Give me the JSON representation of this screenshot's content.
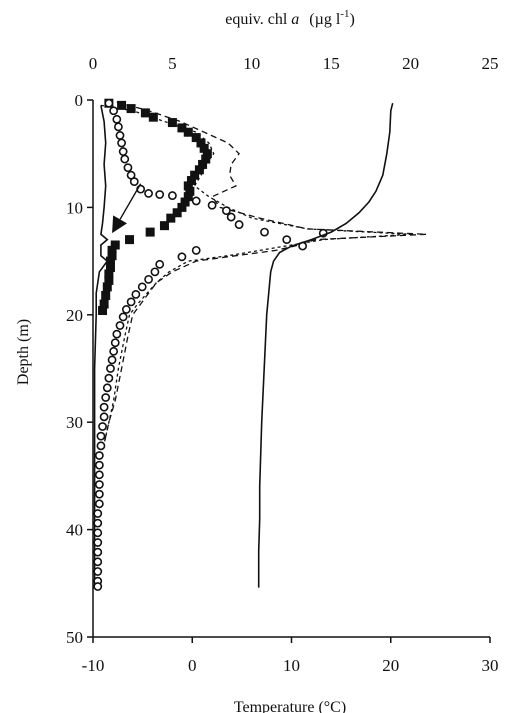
{
  "chart_data": {
    "type": "scatter",
    "title": "",
    "top_axis": {
      "label_prefix": "equiv. chl",
      "label_italic": "a",
      "label_units": "(µg l",
      "label_sup": "-1",
      "label_close": ")",
      "range": [
        0,
        25
      ],
      "ticks": [
        0,
        5,
        10,
        15,
        20,
        25
      ],
      "tick_labels": [
        "0",
        "5",
        "10",
        "15",
        "20",
        "25"
      ]
    },
    "bottom_axis": {
      "label": "Temperature (°C)",
      "range": [
        -10,
        30
      ],
      "ticks": [
        -10,
        0,
        10,
        20,
        30
      ],
      "tick_labels": [
        "-10",
        "0",
        "10",
        "20",
        "30"
      ]
    },
    "left_axis": {
      "label": "Depth (m)",
      "range": [
        0,
        50
      ],
      "inverted": true,
      "ticks": [
        0,
        10,
        20,
        30,
        40,
        50
      ],
      "tick_labels": [
        "0",
        "10",
        "20",
        "30",
        "40",
        "50"
      ]
    },
    "grid": false,
    "legend": "none",
    "series": [
      {
        "axis": "top",
        "style": "solid-line",
        "points": [
          [
            0.5,
            0.5
          ],
          [
            0.7,
            2
          ],
          [
            0.8,
            4
          ],
          [
            0.7,
            6
          ],
          [
            0.8,
            8
          ],
          [
            0.7,
            10
          ],
          [
            0.6,
            11.5
          ],
          [
            0.5,
            12.5
          ],
          [
            0.9,
            13
          ],
          [
            0.5,
            13.5
          ],
          [
            0.5,
            14.5
          ],
          [
            0.9,
            15
          ],
          [
            0.4,
            16
          ],
          [
            0.2,
            18
          ],
          [
            0.2,
            20
          ],
          [
            0.1,
            25
          ],
          [
            0.1,
            30
          ],
          [
            0.1,
            35
          ],
          [
            0.1,
            40
          ],
          [
            0.1,
            45.5
          ]
        ]
      },
      {
        "axis": "top",
        "style": "dashed-line",
        "points": [
          [
            1.5,
            0.2
          ],
          [
            3.5,
            1
          ],
          [
            5.5,
            2
          ],
          [
            7,
            3
          ],
          [
            8.5,
            4
          ],
          [
            9.2,
            5
          ],
          [
            8.7,
            6
          ],
          [
            8.6,
            7
          ],
          [
            9.0,
            8
          ],
          [
            7.5,
            9
          ],
          [
            8.0,
            10
          ],
          [
            10.5,
            11
          ],
          [
            13.5,
            12
          ],
          [
            21.0,
            12.5
          ],
          [
            14.0,
            13
          ],
          [
            13.0,
            13.5
          ],
          [
            11.5,
            14
          ],
          [
            9.0,
            14.5
          ],
          [
            6.5,
            15
          ],
          [
            5.0,
            16
          ],
          [
            4.0,
            17
          ],
          [
            3.5,
            18
          ],
          [
            3.0,
            19
          ],
          [
            2.5,
            20
          ],
          [
            2.2,
            22
          ],
          [
            1.8,
            25
          ],
          [
            1.4,
            28
          ],
          [
            1.0,
            30
          ],
          [
            0.7,
            32
          ]
        ]
      },
      {
        "axis": "top",
        "style": "dotted-line",
        "points": [
          [
            0.5,
            0.5
          ],
          [
            2.5,
            1
          ],
          [
            4.5,
            2
          ],
          [
            6.5,
            3
          ],
          [
            7.3,
            4
          ],
          [
            7.6,
            5
          ],
          [
            7.1,
            6
          ],
          [
            6.8,
            7
          ],
          [
            6.4,
            8
          ],
          [
            7.3,
            9
          ],
          [
            8.5,
            10
          ],
          [
            10.0,
            11
          ],
          [
            13.5,
            12
          ],
          [
            20.0,
            12.5
          ],
          [
            14.5,
            13
          ],
          [
            12.5,
            13.5
          ],
          [
            10.5,
            14
          ],
          [
            8.5,
            14.5
          ],
          [
            6.0,
            15
          ],
          [
            4.8,
            16
          ],
          [
            4.0,
            17
          ],
          [
            3.4,
            18
          ],
          [
            2.8,
            19
          ],
          [
            2.3,
            20
          ],
          [
            2.0,
            22
          ],
          [
            1.6,
            25
          ],
          [
            1.3,
            28
          ],
          [
            1.0,
            30
          ],
          [
            0.7,
            32
          ]
        ]
      },
      {
        "axis": "top",
        "style": "filled-square-markers",
        "points": [
          [
            1.0,
            0.3
          ],
          [
            1.8,
            0.5
          ],
          [
            2.4,
            0.8
          ],
          [
            3.3,
            1.2
          ],
          [
            3.8,
            1.6
          ],
          [
            5.0,
            2.1
          ],
          [
            5.6,
            2.6
          ],
          [
            6.0,
            3.0
          ],
          [
            6.5,
            3.5
          ],
          [
            6.8,
            4.0
          ],
          [
            7.0,
            4.5
          ],
          [
            7.2,
            5.0
          ],
          [
            7.1,
            5.5
          ],
          [
            6.9,
            6.0
          ],
          [
            6.7,
            6.5
          ],
          [
            6.4,
            7.0
          ],
          [
            6.2,
            7.5
          ],
          [
            6.0,
            8.0
          ],
          [
            6.1,
            8.5
          ],
          [
            6.0,
            9.0
          ],
          [
            5.8,
            9.5
          ],
          [
            5.6,
            10.0
          ],
          [
            5.3,
            10.5
          ],
          [
            4.9,
            11.0
          ],
          [
            4.5,
            11.7
          ],
          [
            3.6,
            12.3
          ],
          [
            2.3,
            13.0
          ],
          [
            1.4,
            13.5
          ],
          [
            1.2,
            14.0
          ],
          [
            1.2,
            14.5
          ],
          [
            1.1,
            15.0
          ],
          [
            1.1,
            15.6
          ],
          [
            1.0,
            16.2
          ],
          [
            1.0,
            16.8
          ],
          [
            0.9,
            17.4
          ],
          [
            0.8,
            18.2
          ],
          [
            0.7,
            19.0
          ],
          [
            0.6,
            19.6
          ]
        ]
      },
      {
        "axis": "top",
        "style": "open-circle-markers",
        "points": [
          [
            1.0,
            0.3
          ],
          [
            1.3,
            1.0
          ],
          [
            1.5,
            1.8
          ],
          [
            1.6,
            2.5
          ],
          [
            1.7,
            3.3
          ],
          [
            1.8,
            4.0
          ],
          [
            1.9,
            4.8
          ],
          [
            2.0,
            5.5
          ],
          [
            2.2,
            6.3
          ],
          [
            2.4,
            7.0
          ],
          [
            2.6,
            7.6
          ],
          [
            3.0,
            8.3
          ],
          [
            3.5,
            8.7
          ],
          [
            4.2,
            8.8
          ],
          [
            5.0,
            8.9
          ],
          [
            6.5,
            9.4
          ],
          [
            7.5,
            9.8
          ],
          [
            8.4,
            10.3
          ],
          [
            8.7,
            10.9
          ],
          [
            9.2,
            11.6
          ],
          [
            10.8,
            12.3
          ],
          [
            12.2,
            13.0
          ],
          [
            13.2,
            13.6
          ],
          [
            14.5,
            12.4
          ],
          [
            6.5,
            14.0
          ],
          [
            5.6,
            14.6
          ],
          [
            4.2,
            15.3
          ],
          [
            3.9,
            16.0
          ],
          [
            3.5,
            16.7
          ],
          [
            3.1,
            17.4
          ],
          [
            2.7,
            18.1
          ],
          [
            2.4,
            18.8
          ],
          [
            2.1,
            19.5
          ],
          [
            1.9,
            20.2
          ],
          [
            1.7,
            21.0
          ],
          [
            1.5,
            21.8
          ],
          [
            1.4,
            22.6
          ],
          [
            1.3,
            23.4
          ],
          [
            1.2,
            24.2
          ],
          [
            1.1,
            25.0
          ],
          [
            1.0,
            25.9
          ],
          [
            0.9,
            26.8
          ],
          [
            0.8,
            27.7
          ],
          [
            0.7,
            28.6
          ],
          [
            0.7,
            29.5
          ],
          [
            0.6,
            30.4
          ],
          [
            0.5,
            31.3
          ],
          [
            0.5,
            32.2
          ],
          [
            0.4,
            33.1
          ],
          [
            0.4,
            34.0
          ],
          [
            0.4,
            34.9
          ],
          [
            0.4,
            35.8
          ],
          [
            0.4,
            36.7
          ],
          [
            0.4,
            37.6
          ],
          [
            0.3,
            38.5
          ],
          [
            0.3,
            39.4
          ],
          [
            0.3,
            40.3
          ],
          [
            0.3,
            41.2
          ],
          [
            0.3,
            42.1
          ],
          [
            0.3,
            43.0
          ],
          [
            0.3,
            43.9
          ],
          [
            0.3,
            44.8
          ],
          [
            0.3,
            45.3
          ]
        ]
      },
      {
        "axis": "bottom",
        "style": "solid-line",
        "points": [
          [
            20.2,
            0.3
          ],
          [
            20.0,
            1
          ],
          [
            19.9,
            3
          ],
          [
            19.6,
            5
          ],
          [
            19.2,
            7
          ],
          [
            18.5,
            8.5
          ],
          [
            17.8,
            9.5
          ],
          [
            16.8,
            10.5
          ],
          [
            15.5,
            11.5
          ],
          [
            14.0,
            12.3
          ],
          [
            12.0,
            13.0
          ],
          [
            10.0,
            13.6
          ],
          [
            8.8,
            14.2
          ],
          [
            8.2,
            15
          ],
          [
            7.9,
            16
          ],
          [
            7.7,
            18
          ],
          [
            7.5,
            20
          ],
          [
            7.4,
            22
          ],
          [
            7.3,
            24
          ],
          [
            7.2,
            26
          ],
          [
            7.1,
            28
          ],
          [
            7.0,
            30
          ],
          [
            6.9,
            33
          ],
          [
            6.8,
            36
          ],
          [
            6.8,
            39
          ],
          [
            6.7,
            42
          ],
          [
            6.7,
            45.4
          ]
        ]
      }
    ],
    "annotations": [
      {
        "type": "arrow",
        "axis": "top",
        "from": [
          3.0,
          7.8
        ],
        "to": [
          1.2,
          12.4
        ]
      }
    ]
  }
}
